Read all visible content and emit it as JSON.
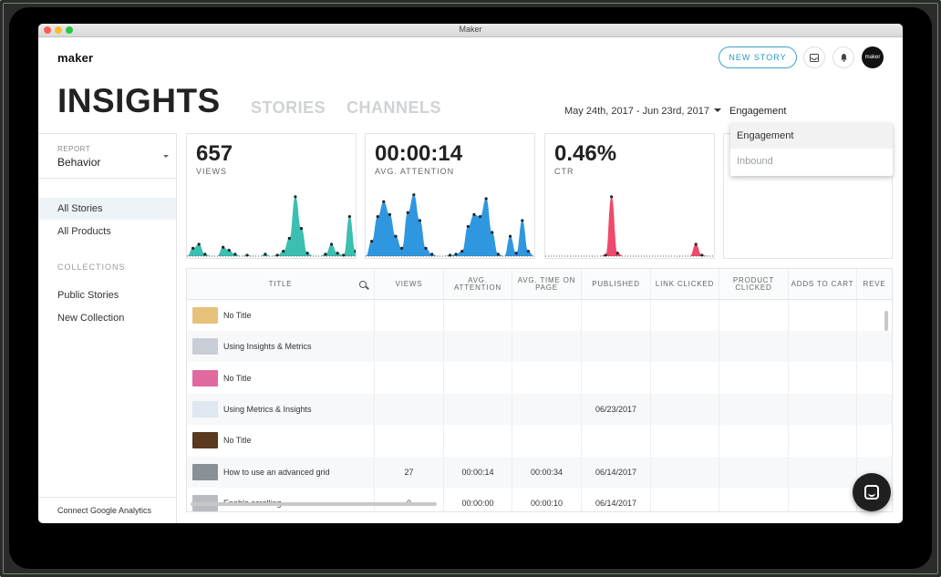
{
  "window": {
    "title": "Maker"
  },
  "header": {
    "logo": "maker",
    "new_story_label": "NEW STORY",
    "avatar_text": "maker"
  },
  "page": {
    "title": "INSIGHTS",
    "tabs": [
      "STORIES",
      "CHANNELS"
    ],
    "date_range": "May 24th, 2017 - Jun 23rd, 2017",
    "metric_selected": "Engagement",
    "metric_options": [
      "Engagement",
      "Inbound"
    ]
  },
  "sidebar": {
    "report_label": "REPORT",
    "report_value": "Behavior",
    "items": [
      "All Stories",
      "All Products"
    ],
    "collections_label": "COLLECTIONS",
    "collections": [
      "Public Stories",
      "New Collection"
    ],
    "footer": "Connect Google Analytics"
  },
  "cards": [
    {
      "value": "657",
      "label": "VIEWS",
      "color": "#3bbfb1"
    },
    {
      "value": "00:00:14",
      "label": "AVG. ATTENTION",
      "color": "#2f97e0"
    },
    {
      "value": "0.46%",
      "label": "CTR",
      "color": "#ef4a6b"
    }
  ],
  "chart_data": [
    {
      "type": "area",
      "series": [
        {
          "values": [
            0,
            8,
            12,
            2,
            0,
            0,
            9,
            6,
            2,
            0,
            1,
            0,
            0,
            2,
            0,
            1,
            5,
            18,
            60,
            28,
            3,
            0,
            0,
            2,
            12,
            3,
            1,
            40,
            5
          ]
        }
      ]
    },
    {
      "type": "area",
      "series": [
        {
          "values": [
            0,
            15,
            40,
            55,
            42,
            20,
            8,
            44,
            62,
            36,
            8,
            2,
            0,
            0,
            1,
            2,
            5,
            30,
            42,
            40,
            58,
            24,
            2,
            0,
            20,
            3,
            36,
            5,
            0
          ]
        }
      ]
    },
    {
      "type": "area",
      "series": [
        {
          "values": [
            0,
            0,
            0,
            0,
            0,
            0,
            0,
            0,
            0,
            0,
            1,
            60,
            3,
            0,
            0,
            0,
            0,
            0,
            0,
            0,
            0,
            0,
            0,
            0,
            0,
            12,
            1,
            0,
            0
          ]
        }
      ]
    }
  ],
  "table": {
    "columns": [
      "TITLE",
      "VIEWS",
      "AVG. ATTENTION",
      "AVG. TIME ON PAGE",
      "PUBLISHED",
      "LINK CLICKED",
      "PRODUCT CLICKED",
      "ADDS TO CART",
      "REVE"
    ],
    "rows": [
      {
        "title": "No Title",
        "views": "",
        "attention": "",
        "time": "",
        "published": "",
        "thumb": "#e8c27a"
      },
      {
        "title": "Using Insights & Metrics",
        "views": "",
        "attention": "",
        "time": "",
        "published": "",
        "thumb": "#c9ced6"
      },
      {
        "title": "No Title",
        "views": "",
        "attention": "",
        "time": "",
        "published": "",
        "thumb": "#e06aa0"
      },
      {
        "title": "Using Metrics & Insights",
        "views": "",
        "attention": "",
        "time": "",
        "published": "06/23/2017",
        "thumb": "#dfe7f0"
      },
      {
        "title": "No Title",
        "views": "",
        "attention": "",
        "time": "",
        "published": "",
        "thumb": "#5a3a1e"
      },
      {
        "title": "How to use an advanced grid",
        "views": "27",
        "attention": "00:00:14",
        "time": "00:00:34",
        "published": "06/14/2017",
        "thumb": "#8a9098"
      },
      {
        "title": "Enable scrolling",
        "views": "0",
        "attention": "00:00:00",
        "time": "00:00:10",
        "published": "06/14/2017",
        "thumb": "#b8bcc2"
      }
    ]
  }
}
